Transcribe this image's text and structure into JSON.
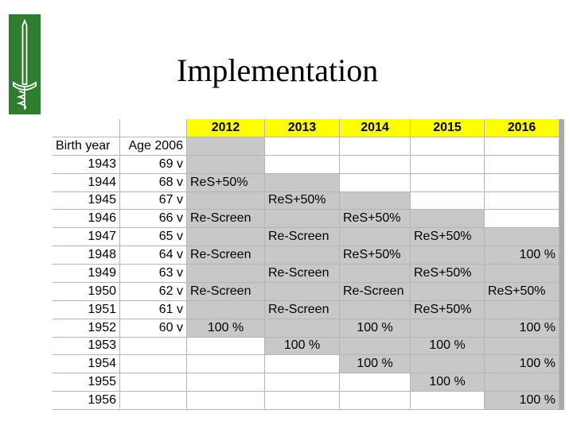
{
  "title": "Implementation",
  "colors": {
    "logo_green": "#2f7d2f",
    "header_yellow": "#ffff00",
    "shaded_cell": "#c8c8c8"
  },
  "table": {
    "header": [
      "",
      "",
      "2012",
      "2013",
      "2014",
      "2015",
      "2016"
    ],
    "subheader": [
      "Birth year",
      "Age 2006"
    ],
    "rows": [
      {
        "year": "1943",
        "age": "69 v",
        "cells": [
          "",
          "",
          "",
          "",
          ""
        ]
      },
      {
        "year": "1944",
        "age": "68 v",
        "cells": [
          "ReS+50%",
          "",
          "",
          "",
          ""
        ]
      },
      {
        "year": "1945",
        "age": "67 v",
        "cells": [
          "",
          "ReS+50%",
          "",
          "",
          ""
        ]
      },
      {
        "year": "1946",
        "age": "66 v",
        "cells": [
          "Re-Screen",
          "",
          "ReS+50%",
          "",
          ""
        ]
      },
      {
        "year": "1947",
        "age": "65 v",
        "cells": [
          "",
          "Re-Screen",
          "",
          "ReS+50%",
          ""
        ]
      },
      {
        "year": "1948",
        "age": "64 v",
        "cells": [
          "Re-Screen",
          "",
          "ReS+50%",
          "",
          "100 %"
        ]
      },
      {
        "year": "1949",
        "age": "63 v",
        "cells": [
          "",
          "Re-Screen",
          "",
          "ReS+50%",
          ""
        ]
      },
      {
        "year": "1950",
        "age": "62 v",
        "cells": [
          "Re-Screen",
          "",
          "Re-Screen",
          "",
          "ReS+50%"
        ]
      },
      {
        "year": "1951",
        "age": "61 v",
        "cells": [
          "",
          "Re-Screen",
          "",
          "ReS+50%",
          ""
        ]
      },
      {
        "year": "1952",
        "age": "60 v",
        "cells": [
          "100 %",
          "",
          "100 %",
          "",
          "100 %"
        ]
      },
      {
        "year": "1953",
        "age": "",
        "cells": [
          "",
          "100 %",
          "",
          "100 %",
          ""
        ]
      },
      {
        "year": "1954",
        "age": "",
        "cells": [
          "",
          "",
          "100 %",
          "",
          "100 %"
        ]
      },
      {
        "year": "1955",
        "age": "",
        "cells": [
          "",
          "",
          "",
          "100 %",
          ""
        ]
      },
      {
        "year": "1956",
        "age": "",
        "cells": [
          "",
          "",
          "",
          "",
          "100 %"
        ]
      }
    ]
  }
}
